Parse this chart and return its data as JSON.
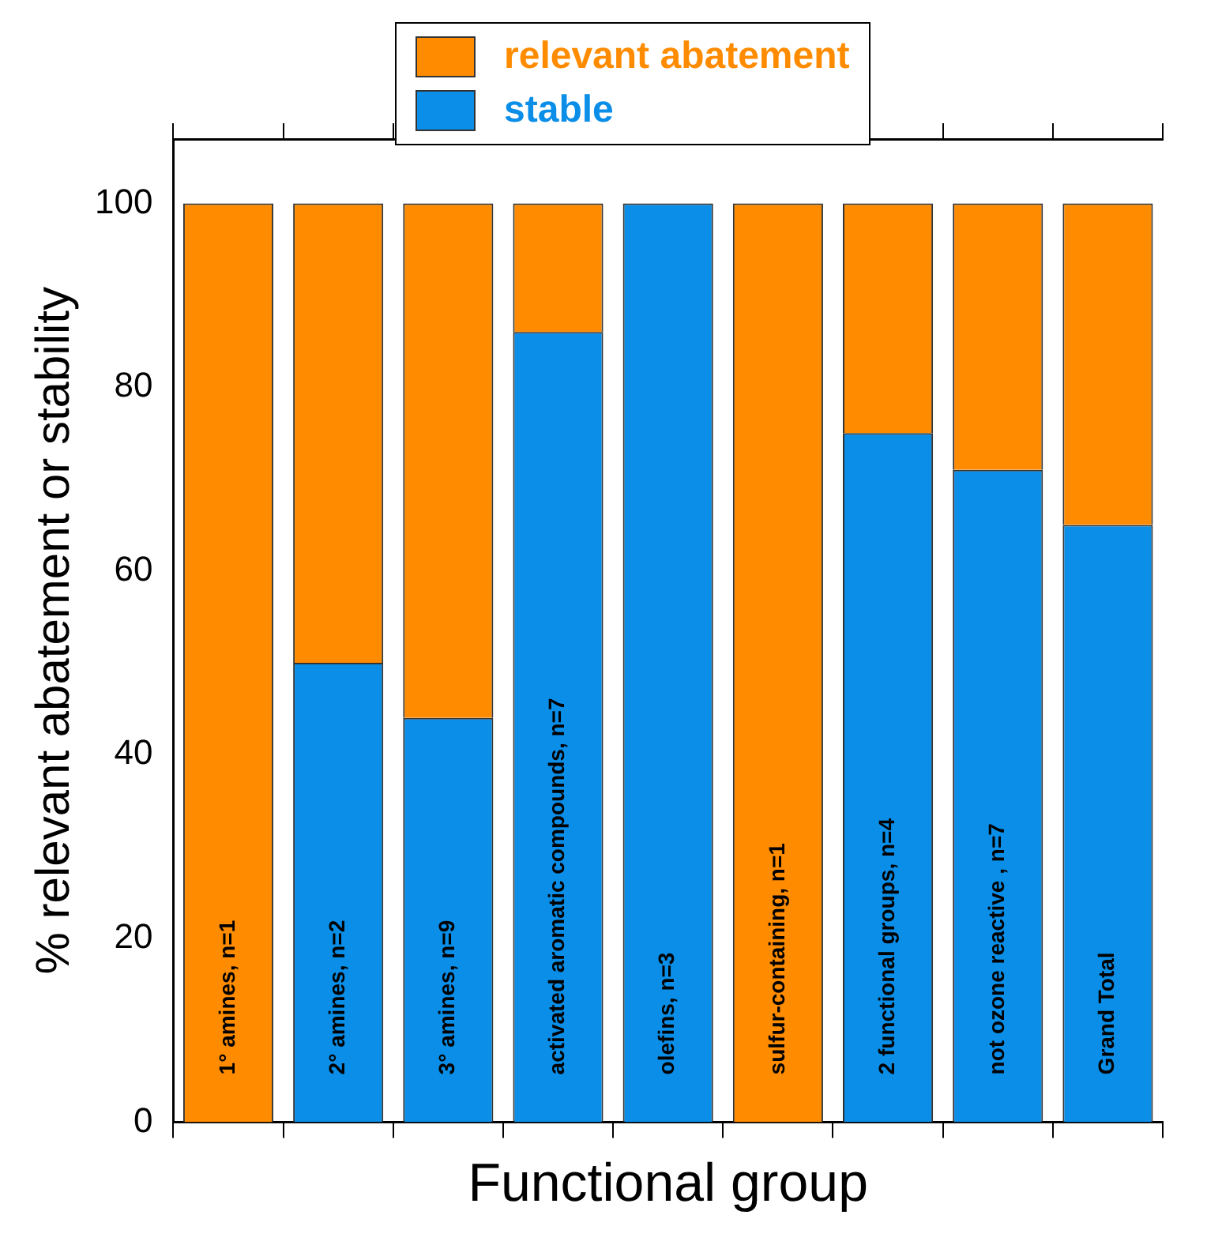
{
  "chart_data": {
    "type": "bar",
    "stacked": true,
    "xlabel": "Functional group",
    "ylabel": "% relevant abatement or stability",
    "categories": [
      "1° amines, n=1",
      "2° amines, n=2",
      "3° amines, n=9",
      "activated aromatic compounds, n=7",
      "olefins, n=3",
      "sulfur-containing, n=1",
      "2 functional groups, n=4",
      "not ozone reactive , n=7",
      "Grand Total"
    ],
    "series": [
      {
        "name": "stable",
        "color": "#0a8ee8",
        "values": [
          0,
          50,
          44,
          86,
          100,
          0,
          75,
          71,
          65
        ]
      },
      {
        "name": "relevant abatement",
        "color": "#ff8c00",
        "values": [
          100,
          50,
          56,
          14,
          0,
          100,
          25,
          29,
          35
        ]
      }
    ],
    "ylim": [
      0,
      107
    ],
    "yticks": [
      0,
      20,
      40,
      60,
      80,
      100
    ],
    "grid": false,
    "legend": "top",
    "tick_labels": "y"
  }
}
